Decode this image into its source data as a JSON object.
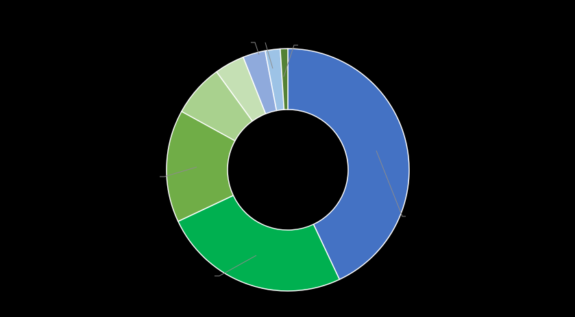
{
  "chart_data": {
    "type": "pie",
    "categories": [
      null,
      null,
      null,
      null,
      null,
      null,
      null,
      null
    ],
    "values": [
      43,
      25,
      15,
      7,
      4,
      3,
      2,
      1
    ],
    "colors": [
      "#4472c4",
      "#00b050",
      "#70ad47",
      "#a9d18e",
      "#c5e0b4",
      "#8faadc",
      "#9dc3e6",
      "#548235"
    ]
  }
}
